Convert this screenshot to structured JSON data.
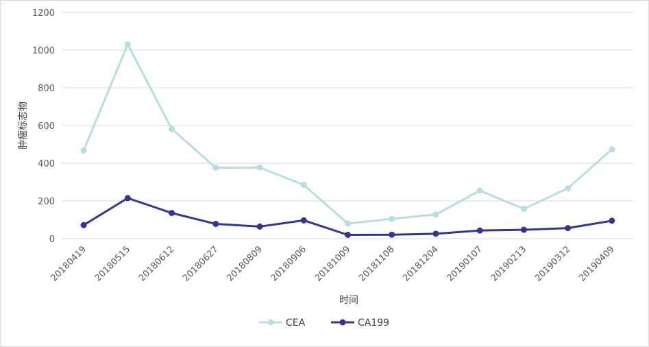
{
  "chart_data": {
    "type": "line",
    "title": "",
    "xlabel": "时间",
    "ylabel": "肿瘤标志物",
    "ylim": [
      0,
      1200
    ],
    "yticks": [
      0,
      200,
      400,
      600,
      800,
      1000,
      1200
    ],
    "grid": true,
    "legend_position": "bottom",
    "categories": [
      "20180419",
      "20180515",
      "20180612",
      "20180627",
      "20180809",
      "20180906",
      "20181009",
      "20181108",
      "20181204",
      "20190107",
      "20190213",
      "20190312",
      "20190409"
    ],
    "series": [
      {
        "name": "CEA",
        "color": "#b7dde3",
        "values": [
          468,
          1030,
          582,
          376,
          377,
          285,
          80,
          105,
          128,
          255,
          158,
          267,
          474
        ]
      },
      {
        "name": "CA199",
        "color": "#333399",
        "values": [
          72,
          215,
          136,
          78,
          64,
          97,
          20,
          21,
          26,
          43,
          47,
          56,
          95
        ]
      }
    ]
  }
}
